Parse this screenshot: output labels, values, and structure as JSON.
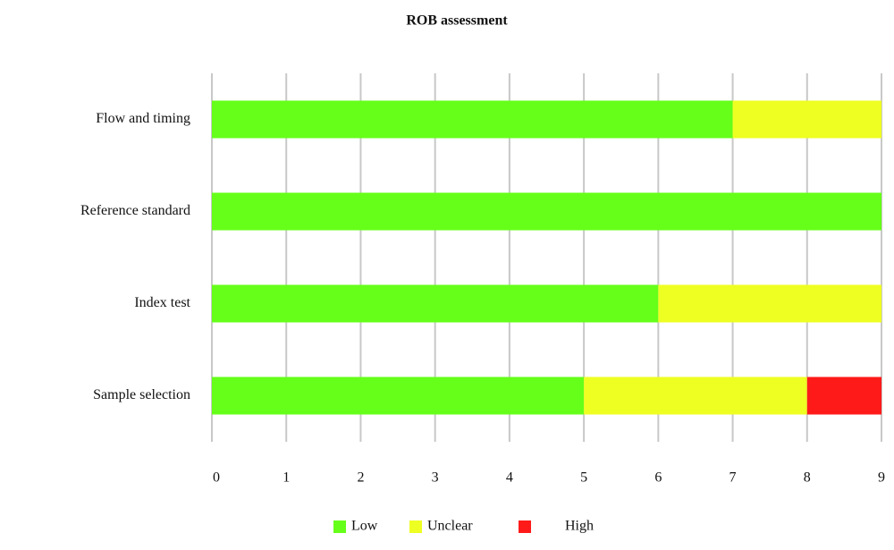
{
  "chart_data": {
    "type": "bar",
    "orientation": "horizontal",
    "stacked": true,
    "title": "ROB assessment",
    "categories": [
      "Flow and timing",
      "Reference standard",
      "Index test",
      "Sample selection"
    ],
    "series": [
      {
        "name": "Low",
        "color": "#66ff1a",
        "values": [
          7,
          9,
          6,
          5
        ]
      },
      {
        "name": "Unclear",
        "color": "#eeff22",
        "values": [
          2,
          0,
          3,
          3
        ]
      },
      {
        "name": "High",
        "color": "#ff1a1a",
        "values": [
          0,
          0,
          0,
          1
        ]
      }
    ],
    "xlim": [
      0,
      9
    ],
    "xticks": [
      0,
      1,
      2,
      3,
      4,
      5,
      6,
      7,
      8,
      9
    ],
    "grid": true,
    "legend": "bottom"
  }
}
